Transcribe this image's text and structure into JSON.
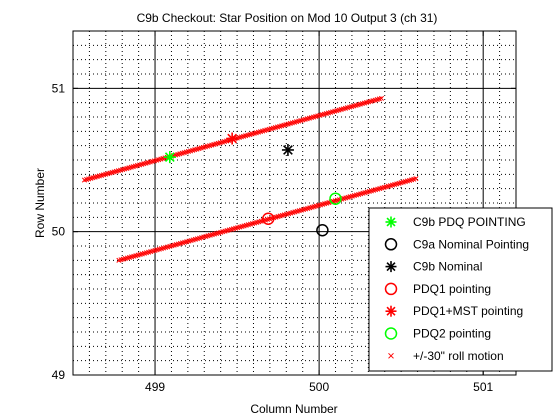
{
  "chart_data": {
    "type": "scatter",
    "title": "C9b Checkout: Star Position on Mod 10 Output 3 (ch 31)",
    "xlabel": "Column Number",
    "ylabel": "Row Number",
    "xlim": [
      498.5,
      501.2
    ],
    "ylim": [
      49.0,
      51.4
    ],
    "xticks": [
      499,
      500,
      501
    ],
    "yticks": [
      49,
      50,
      51
    ],
    "xtick_labels": [
      "499",
      "500",
      "501"
    ],
    "ytick_labels": [
      "49",
      "50",
      "51"
    ],
    "grid": "dotted minor grid with solid major grid",
    "legend_position": "bottom-right",
    "series": [
      {
        "name": "C9b PDQ POINTING",
        "marker": "asterisk",
        "color": "#00ff00",
        "points": [
          [
            499.09,
            50.52
          ]
        ]
      },
      {
        "name": "C9a Nominal Pointing",
        "marker": "circle",
        "color": "#000000",
        "points": [
          [
            500.02,
            50.01
          ]
        ]
      },
      {
        "name": "C9b Nominal",
        "marker": "asterisk",
        "color": "#000000",
        "points": [
          [
            499.81,
            50.57
          ]
        ]
      },
      {
        "name": "PDQ1 pointing",
        "marker": "circle",
        "color": "#ff0000",
        "points": [
          [
            499.69,
            50.09
          ]
        ]
      },
      {
        "name": "PDQ1+MST pointing",
        "marker": "asterisk",
        "color": "#ff0000",
        "points": [
          [
            499.47,
            50.65
          ]
        ]
      },
      {
        "name": "PDQ2 pointing",
        "marker": "circle",
        "color": "#00ff00",
        "points": [
          [
            500.1,
            50.23
          ]
        ]
      },
      {
        "name": "+/-30\" roll motion",
        "marker": "x",
        "color": "#ff0000",
        "segments": [
          {
            "from": [
              498.57,
              50.36
            ],
            "to": [
              500.38,
              50.93
            ]
          },
          {
            "from": [
              498.78,
              49.8
            ],
            "to": [
              500.59,
              50.37
            ]
          }
        ]
      }
    ]
  }
}
